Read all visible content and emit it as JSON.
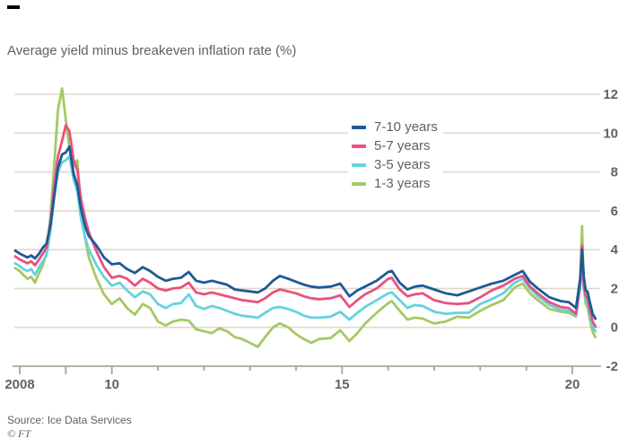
{
  "title": "Average yield minus breakeven inflation rate (%)",
  "source": "Source: Ice Data Services",
  "copyright": "© FT",
  "colors": {
    "text": "#66605c",
    "gridline": "#e3d7cb",
    "axis": "#b0a496",
    "background": "#ffffff",
    "top_mark": "#000000"
  },
  "chart_data": {
    "type": "line",
    "title": "Average yield minus breakeven inflation rate (%)",
    "xlabel": "",
    "ylabel": "",
    "ylim": [
      -2,
      12.5
    ],
    "xlim": [
      2007.85,
      2020.62
    ],
    "grid": true,
    "legend_position": "inside-top-center",
    "y_ticks": [
      {
        "value": 12,
        "label": "12"
      },
      {
        "value": 10,
        "label": "10"
      },
      {
        "value": 8,
        "label": "8"
      },
      {
        "value": 6,
        "label": "6"
      },
      {
        "value": 4,
        "label": "4"
      },
      {
        "value": 2,
        "label": "2"
      },
      {
        "value": 0,
        "label": "0"
      },
      {
        "value": -2,
        "label": "-2"
      }
    ],
    "x_ticks": [
      {
        "year": 2008,
        "label": "2008",
        "major": true
      },
      {
        "year": 2009,
        "label": "",
        "major": true
      },
      {
        "year": 2010,
        "label": "10",
        "major": true
      },
      {
        "year": 2011,
        "label": "",
        "major": false
      },
      {
        "year": 2012,
        "label": "",
        "major": false
      },
      {
        "year": 2013,
        "label": "",
        "major": false
      },
      {
        "year": 2014,
        "label": "",
        "major": false
      },
      {
        "year": 2015,
        "label": "15",
        "major": true
      },
      {
        "year": 2016,
        "label": "",
        "major": false
      },
      {
        "year": 2017,
        "label": "",
        "major": false
      },
      {
        "year": 2018,
        "label": "",
        "major": false
      },
      {
        "year": 2019,
        "label": "",
        "major": false
      },
      {
        "year": 2020,
        "label": "20",
        "major": true
      }
    ],
    "x": [
      2007.9,
      2008.0,
      2008.08,
      2008.17,
      2008.25,
      2008.33,
      2008.42,
      2008.5,
      2008.58,
      2008.67,
      2008.75,
      2008.83,
      2008.92,
      2009.0,
      2009.08,
      2009.17,
      2009.25,
      2009.33,
      2009.42,
      2009.5,
      2009.67,
      2009.83,
      2010.0,
      2010.17,
      2010.33,
      2010.5,
      2010.67,
      2010.83,
      2011.0,
      2011.17,
      2011.33,
      2011.5,
      2011.67,
      2011.83,
      2012.0,
      2012.17,
      2012.33,
      2012.5,
      2012.67,
      2012.83,
      2013.0,
      2013.17,
      2013.33,
      2013.5,
      2013.65,
      2013.83,
      2014.0,
      2014.17,
      2014.33,
      2014.5,
      2014.75,
      2014.96,
      2015.16,
      2015.33,
      2015.5,
      2015.75,
      2016.0,
      2016.08,
      2016.25,
      2016.42,
      2016.58,
      2016.75,
      2017.0,
      2017.25,
      2017.5,
      2017.75,
      2018.0,
      2018.25,
      2018.5,
      2018.75,
      2018.92,
      2019.08,
      2019.25,
      2019.5,
      2019.75,
      2019.92,
      2020.08,
      2020.17,
      2020.21,
      2020.25,
      2020.29,
      2020.33,
      2020.38,
      2020.44,
      2020.5
    ],
    "series": [
      {
        "name": "7-10 years",
        "color": "#1e5a93",
        "values": [
          3.95,
          3.8,
          3.7,
          3.6,
          3.7,
          3.55,
          3.8,
          4.1,
          4.3,
          5.3,
          6.8,
          8.2,
          8.9,
          9.0,
          9.3,
          7.9,
          7.3,
          6.1,
          5.2,
          4.7,
          4.2,
          3.6,
          3.25,
          3.3,
          3.0,
          2.8,
          3.1,
          2.9,
          2.6,
          2.4,
          2.5,
          2.55,
          2.85,
          2.4,
          2.3,
          2.4,
          2.3,
          2.2,
          1.95,
          1.9,
          1.85,
          1.8,
          2.0,
          2.4,
          2.65,
          2.5,
          2.35,
          2.2,
          2.1,
          2.05,
          2.1,
          2.25,
          1.6,
          1.9,
          2.1,
          2.4,
          2.85,
          2.9,
          2.3,
          1.95,
          2.1,
          2.15,
          1.95,
          1.75,
          1.65,
          1.85,
          2.05,
          2.25,
          2.4,
          2.7,
          2.9,
          2.35,
          2.0,
          1.55,
          1.35,
          1.3,
          1.0,
          2.5,
          4.0,
          2.6,
          1.9,
          1.85,
          1.3,
          0.7,
          0.45
        ]
      },
      {
        "name": "5-7 years",
        "color": "#e9517e",
        "values": [
          3.65,
          3.5,
          3.4,
          3.3,
          3.4,
          3.2,
          3.5,
          3.8,
          4.1,
          5.5,
          7.3,
          8.8,
          9.6,
          10.4,
          10.1,
          8.6,
          8.1,
          6.6,
          5.6,
          4.9,
          3.9,
          3.1,
          2.55,
          2.65,
          2.5,
          2.15,
          2.5,
          2.3,
          2.0,
          1.9,
          2.0,
          2.05,
          2.3,
          1.8,
          1.7,
          1.8,
          1.7,
          1.6,
          1.5,
          1.4,
          1.35,
          1.3,
          1.5,
          1.8,
          1.95,
          1.85,
          1.75,
          1.6,
          1.5,
          1.45,
          1.5,
          1.65,
          1.05,
          1.4,
          1.7,
          2.0,
          2.5,
          2.55,
          1.95,
          1.6,
          1.7,
          1.75,
          1.4,
          1.25,
          1.2,
          1.25,
          1.55,
          1.9,
          2.15,
          2.5,
          2.65,
          2.1,
          1.75,
          1.3,
          1.05,
          1.0,
          0.7,
          2.3,
          4.2,
          2.2,
          1.6,
          1.5,
          0.9,
          0.3,
          0.05
        ]
      },
      {
        "name": "3-5 years",
        "color": "#66d2de",
        "values": [
          3.3,
          3.15,
          3.0,
          2.9,
          3.0,
          2.7,
          3.1,
          3.4,
          3.7,
          5.0,
          6.7,
          8.0,
          8.5,
          8.6,
          8.8,
          7.6,
          7.0,
          5.6,
          4.6,
          4.0,
          3.2,
          2.6,
          2.15,
          2.3,
          1.9,
          1.55,
          1.85,
          1.7,
          1.2,
          1.0,
          1.2,
          1.25,
          1.7,
          1.1,
          0.95,
          1.1,
          1.0,
          0.85,
          0.7,
          0.6,
          0.55,
          0.5,
          0.75,
          1.0,
          1.05,
          0.95,
          0.8,
          0.6,
          0.5,
          0.5,
          0.55,
          0.8,
          0.4,
          0.75,
          1.05,
          1.4,
          1.75,
          1.8,
          1.4,
          1.0,
          1.15,
          1.1,
          0.8,
          0.7,
          0.75,
          0.75,
          1.2,
          1.45,
          1.75,
          2.3,
          2.5,
          2.0,
          1.6,
          1.15,
          0.9,
          0.85,
          0.6,
          2.0,
          3.4,
          1.9,
          1.4,
          1.25,
          0.7,
          0.05,
          -0.2
        ]
      },
      {
        "name": "1-3 years",
        "color": "#a4c963",
        "values": [
          3.05,
          2.9,
          2.7,
          2.5,
          2.6,
          2.3,
          2.8,
          3.2,
          3.8,
          5.8,
          8.4,
          11.2,
          12.3,
          10.7,
          9.2,
          8.3,
          8.6,
          6.0,
          4.6,
          3.6,
          2.5,
          1.7,
          1.2,
          1.5,
          1.0,
          0.65,
          1.2,
          1.0,
          0.3,
          0.1,
          0.3,
          0.4,
          0.35,
          -0.1,
          -0.2,
          -0.3,
          -0.05,
          -0.2,
          -0.5,
          -0.6,
          -0.8,
          -1.0,
          -0.5,
          0.0,
          0.2,
          0.0,
          -0.35,
          -0.6,
          -0.8,
          -0.6,
          -0.55,
          -0.15,
          -0.7,
          -0.3,
          0.2,
          0.75,
          1.25,
          1.35,
          0.85,
          0.4,
          0.5,
          0.45,
          0.2,
          0.3,
          0.55,
          0.5,
          0.85,
          1.15,
          1.4,
          2.05,
          2.25,
          1.75,
          1.4,
          0.95,
          0.8,
          0.75,
          0.55,
          2.4,
          5.2,
          2.1,
          1.2,
          1.05,
          0.4,
          -0.25,
          -0.5
        ]
      }
    ]
  }
}
